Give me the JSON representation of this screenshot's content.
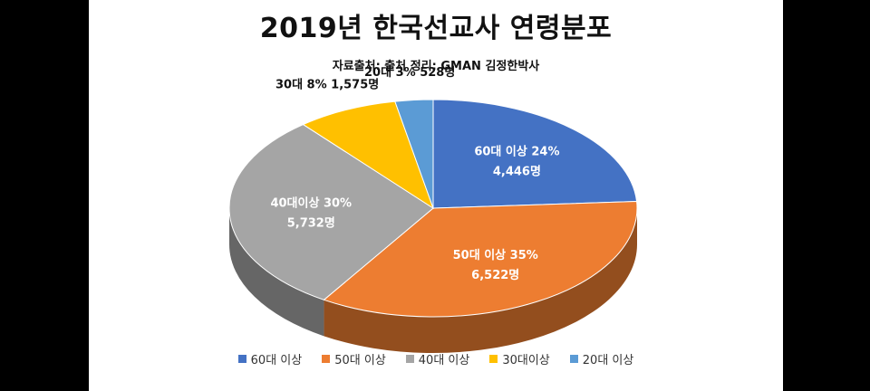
{
  "chart_data": {
    "type": "pie",
    "title": "2019년 한국선교사 연령분포",
    "subtitle": "자료출처: 출처 정리: GMAN 김정한박사",
    "slices": [
      {
        "name": "60대 이상",
        "label_line1": "60대 이상 24%",
        "label_line2": "4,446명",
        "percent": 24,
        "count": 4446,
        "color": "#4472C4"
      },
      {
        "name": "50대 이상",
        "label_line1": "50대 이상 35%",
        "label_line2": "6,522명",
        "percent": 35,
        "count": 6522,
        "color": "#ED7D31"
      },
      {
        "name": "40대 이상",
        "label_line1": "40대이상  30%",
        "label_line2": "5,732명",
        "percent": 30,
        "count": 5732,
        "color": "#A5A5A5"
      },
      {
        "name": "30대이상",
        "label_line1": "30대 8% 1,575명",
        "label_line2": "",
        "percent": 8,
        "count": 1575,
        "color": "#FFC000"
      },
      {
        "name": "20대 이상",
        "label_line1": "20대  3%  528명",
        "label_line2": "",
        "percent": 3,
        "count": 528,
        "color": "#5B9BD5"
      }
    ],
    "legend_position": "bottom"
  }
}
